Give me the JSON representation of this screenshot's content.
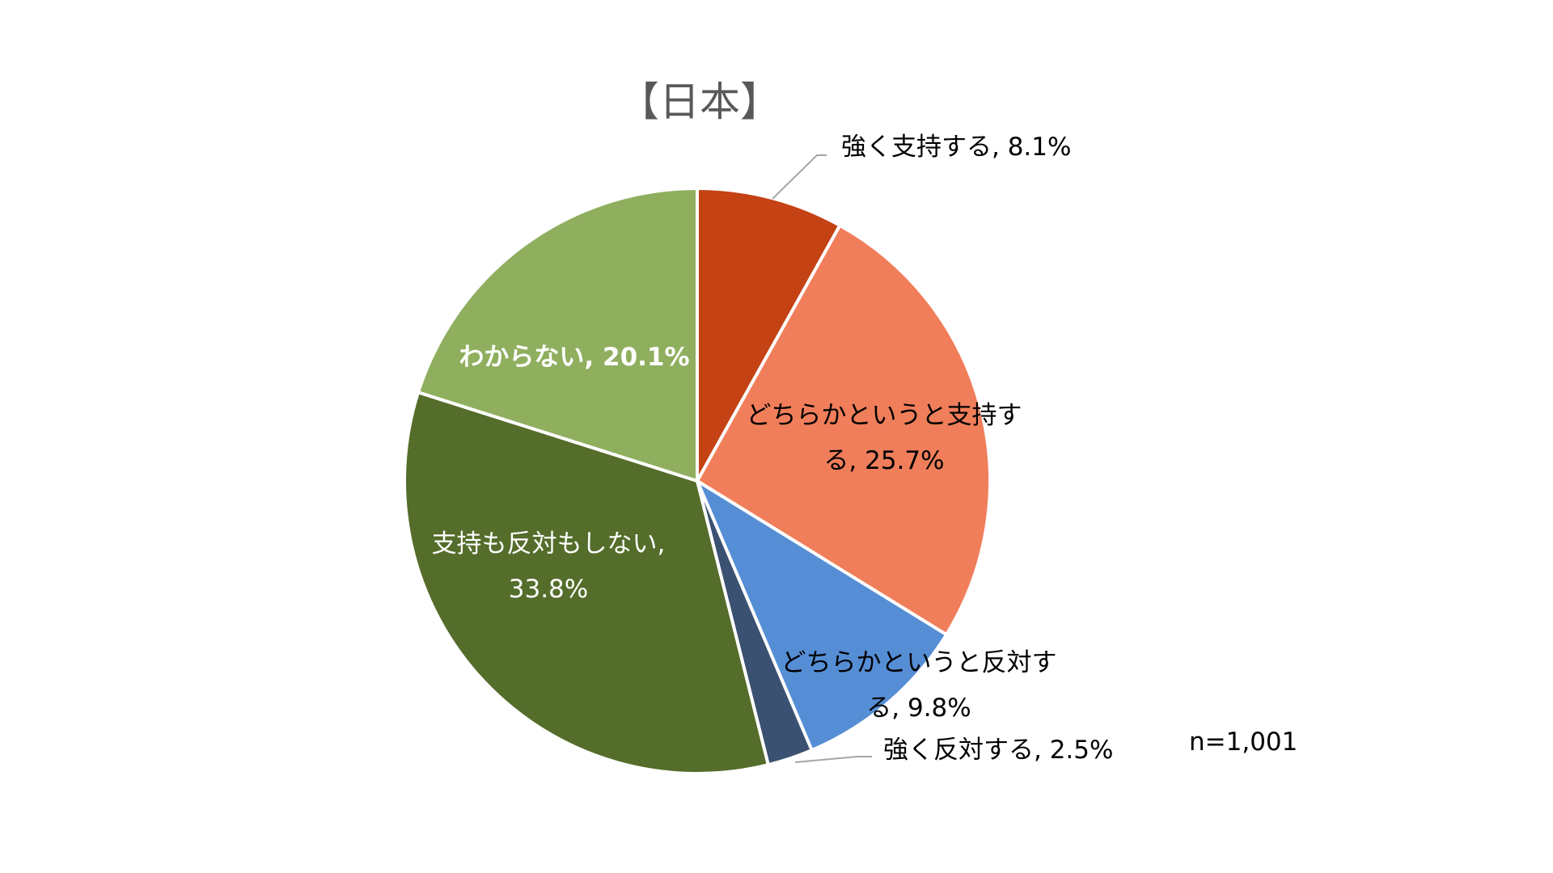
{
  "chart_data": {
    "type": "pie",
    "title": "【日本】",
    "note": "n=1,001",
    "unit": "%",
    "slices": [
      {
        "label": "強く支持する",
        "value": 8.1,
        "color": "#C44214"
      },
      {
        "label": "どちらかというと支持する",
        "value": 25.7,
        "color": "#F07E5A"
      },
      {
        "label": "どちらかというと反対する",
        "value": 9.8,
        "color": "#558ED5"
      },
      {
        "label": "強く反対する",
        "value": 2.5,
        "color": "#3B5171"
      },
      {
        "label": "支持も反対もしない",
        "value": 33.8,
        "color": "#546D2B"
      },
      {
        "label": "わからない",
        "value": 20.1,
        "color": "#8FAF5F"
      }
    ],
    "data_labels": [
      {
        "lines": [
          "強く支持する, 8.1%"
        ]
      },
      {
        "lines": [
          "どちらかというと支持す",
          "る, 25.7%"
        ]
      },
      {
        "lines": [
          "どちらかというと反対す",
          "る, 9.8%"
        ]
      },
      {
        "lines": [
          "強く反対する, 2.5%"
        ]
      },
      {
        "lines": [
          "支持も反対もしない,",
          "33.8%"
        ]
      },
      {
        "lines": [
          "わからない, 20.1%"
        ]
      }
    ],
    "legend": "none"
  }
}
